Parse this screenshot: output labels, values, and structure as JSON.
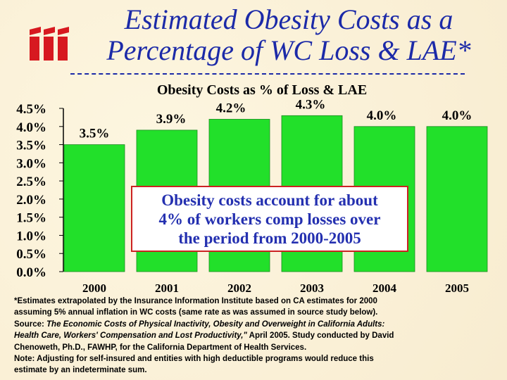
{
  "title": {
    "line1": "Estimated Obesity Costs as a",
    "line2": "Percentage of WC Loss & LAE*"
  },
  "logo": {
    "icon": "iii-logo",
    "color": "#d71920"
  },
  "chart_data": {
    "type": "bar",
    "title": "Obesity Costs as % of Loss & LAE",
    "categories": [
      "2000",
      "2001",
      "2002",
      "2003",
      "2004",
      "2005"
    ],
    "values": [
      3.5,
      3.9,
      4.2,
      4.3,
      4.0,
      4.0
    ],
    "data_labels": [
      "3.5%",
      "3.9%",
      "4.2%",
      "4.3%",
      "4.0%",
      "4.0%"
    ],
    "ylim": [
      0,
      4.5
    ],
    "yticks": [
      "0.0%",
      "0.5%",
      "1.0%",
      "1.5%",
      "2.0%",
      "2.5%",
      "3.0%",
      "3.5%",
      "4.0%",
      "4.5%"
    ],
    "xlabel": "",
    "ylabel": "",
    "bar_color": "#22e02a",
    "grid": false
  },
  "callout": {
    "line1": "Obesity costs account for about",
    "line2": "4% of workers comp losses over",
    "line3": "the period from 2000-2005"
  },
  "footnote": {
    "line1": "*Estimates extrapolated by the Insurance Information Institute based on CA estimates for 2000",
    "line2": "assuming 5% annual inflation in WC costs (same rate as was assumed in source study below).",
    "line3_prefix": "Source: ",
    "line3_italic": "The Economic Costs of Physical Inactivity, Obesity and Overweight in California Adults:",
    "line4_italic": "Health Care, Workers' Compensation and Lost Productivity,\"",
    "line4_rest": " April 2005. Study conducted by David",
    "line5": "Chenoweth, Ph.D., FAWHP, for the California Department of Health Services.",
    "line6": "Note: Adjusting for self-insured and entities with high deductible programs would reduce this",
    "line7": "estimate by an indeterminate sum."
  }
}
